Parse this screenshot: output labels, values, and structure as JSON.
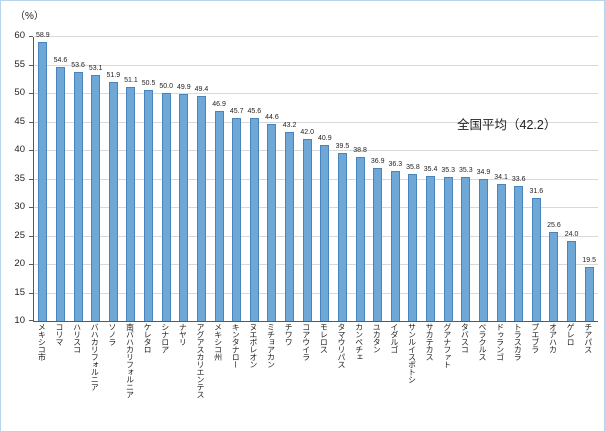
{
  "chart_data": {
    "type": "bar",
    "title": "",
    "ylabel": "（%）",
    "xlabel": "",
    "ylim": [
      10,
      60
    ],
    "ytick_step": 5,
    "grid": true,
    "legend": "none",
    "bar_color": "#6FA7D6",
    "bar_border_color": "#4A84BD",
    "annotation": "全国平均（42.2）",
    "categories": [
      "メキシコ市",
      "コリマ",
      "ハリスコ",
      "バハカリフォルニア",
      "ソノラ",
      "南バハカリフォルニア",
      "ケレタロ",
      "シナロア",
      "ナヤリ",
      "アグアスカリエンテス",
      "メキシコ州",
      "キンタナロー",
      "ヌエボレオン",
      "ミチョアカン",
      "チワワ",
      "コアウイラ",
      "モレロス",
      "タマウリパス",
      "カンペチェ",
      "ユカタン",
      "イダルゴ",
      "サンルイスポトシ",
      "サカテカス",
      "グアナファト",
      "タバスコ",
      "ベラクルス",
      "ドゥランゴ",
      "トラスカラ",
      "プエブラ",
      "オアハカ",
      "ゲレロ",
      "チアパス"
    ],
    "values": [
      58.9,
      54.6,
      53.6,
      53.1,
      51.9,
      51.1,
      50.5,
      50.0,
      49.9,
      49.4,
      46.9,
      45.7,
      45.6,
      44.6,
      43.2,
      42.0,
      40.9,
      39.5,
      38.8,
      36.9,
      36.3,
      35.8,
      35.4,
      35.3,
      35.3,
      34.9,
      34.1,
      33.6,
      31.6,
      25.6,
      24.0,
      19.5
    ]
  }
}
